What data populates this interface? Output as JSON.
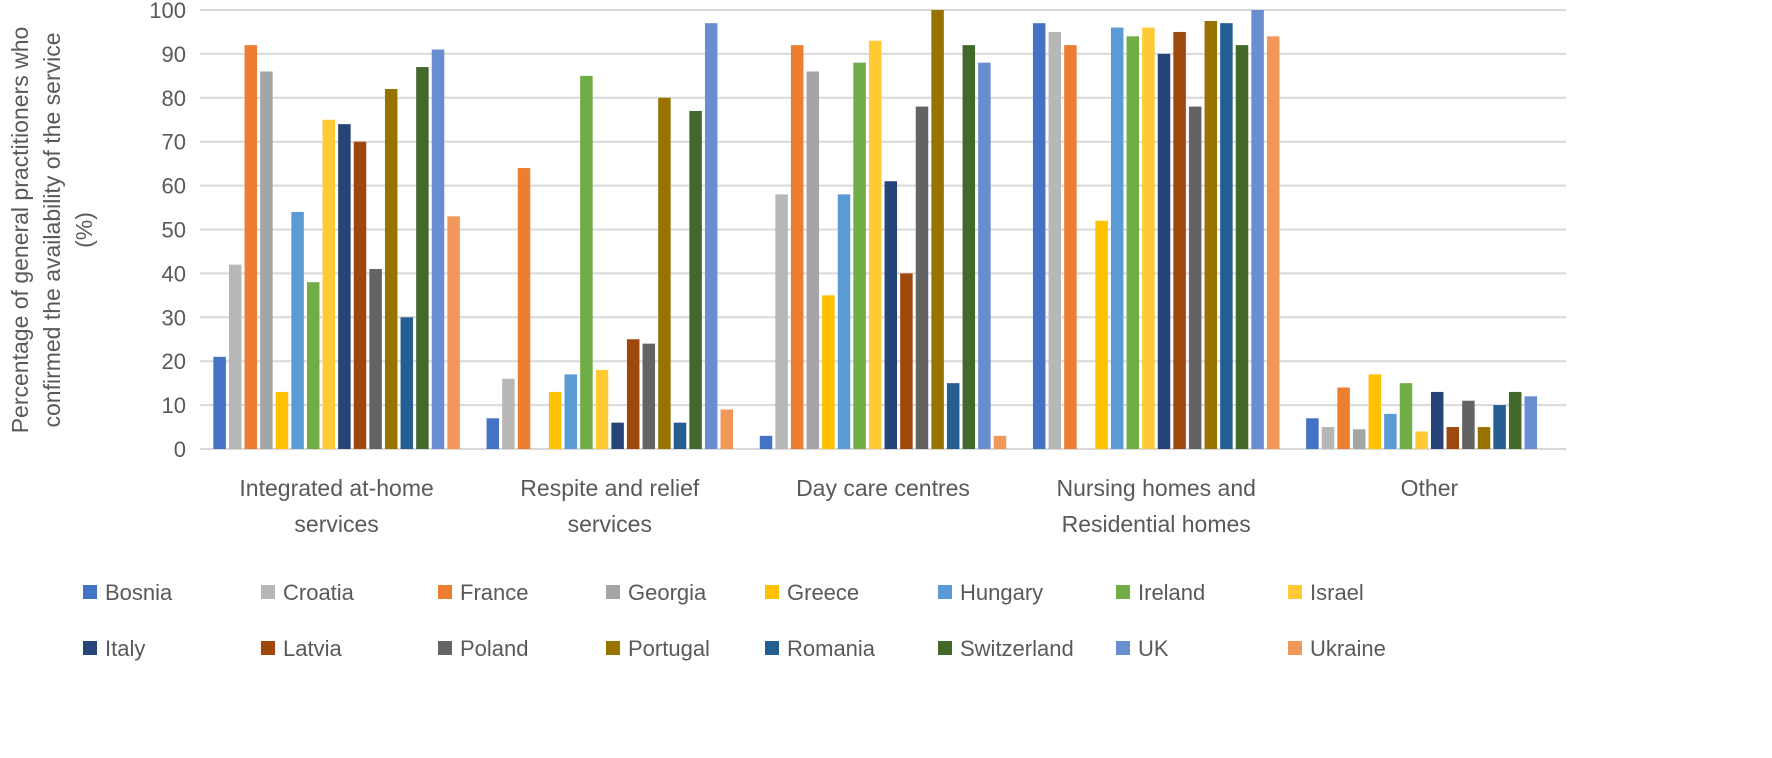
{
  "chart_data": {
    "type": "bar",
    "title": "",
    "xlabel": "",
    "ylabel_lines": [
      "Percentage of general practitioners who",
      "confirmed the availability of the service",
      "(%)"
    ],
    "ylim": [
      0,
      100
    ],
    "yticks": [
      0,
      10,
      20,
      30,
      40,
      50,
      60,
      70,
      80,
      90,
      100
    ],
    "grid": true,
    "legend_position": "bottom",
    "categories": [
      [
        "Integrated at-home",
        "services"
      ],
      [
        "Respite and relief",
        "services"
      ],
      [
        "Day care centres"
      ],
      [
        "Nursing homes and",
        "Residential homes"
      ],
      [
        "Other"
      ]
    ],
    "series": [
      {
        "name": "Bosnia",
        "color": "#4472C4",
        "values": [
          21,
          7,
          3,
          97,
          7
        ]
      },
      {
        "name": "Croatia",
        "color": "#B7B7B7",
        "values": [
          42,
          16,
          58,
          95,
          5
        ]
      },
      {
        "name": "France",
        "color": "#ED7D31",
        "values": [
          92,
          64,
          92,
          92,
          14
        ]
      },
      {
        "name": "Georgia",
        "color": "#A5A5A5",
        "values": [
          86,
          0,
          86,
          0,
          4.5
        ]
      },
      {
        "name": "Greece",
        "color": "#FFC000",
        "values": [
          13,
          13,
          35,
          52,
          17
        ]
      },
      {
        "name": "Hungary",
        "color": "#5B9BD5",
        "values": [
          54,
          17,
          58,
          96,
          8
        ]
      },
      {
        "name": "Ireland",
        "color": "#70AD47",
        "values": [
          38,
          85,
          88,
          94,
          15
        ]
      },
      {
        "name": "Israel",
        "color": "#FFCA33",
        "values": [
          75,
          18,
          93,
          96,
          4
        ]
      },
      {
        "name": "Italy",
        "color": "#264478",
        "values": [
          74,
          6,
          61,
          90,
          13
        ]
      },
      {
        "name": "Latvia",
        "color": "#9E480E",
        "values": [
          70,
          25,
          40,
          95,
          5
        ]
      },
      {
        "name": "Poland",
        "color": "#636363",
        "values": [
          41,
          24,
          78,
          78,
          11
        ]
      },
      {
        "name": "Portugal",
        "color": "#997300",
        "values": [
          82,
          80,
          100,
          97.5,
          5
        ]
      },
      {
        "name": "Romania",
        "color": "#255E91",
        "values": [
          30,
          6,
          15,
          97,
          10
        ]
      },
      {
        "name": "Switzerland",
        "color": "#43682B",
        "values": [
          87,
          77,
          92,
          92,
          13
        ]
      },
      {
        "name": "UK",
        "color": "#698ED0",
        "values": [
          91,
          97,
          88,
          100,
          12
        ]
      },
      {
        "name": "Ukraine",
        "color": "#F1975A",
        "values": [
          53,
          9,
          3,
          94,
          0
        ]
      }
    ]
  }
}
